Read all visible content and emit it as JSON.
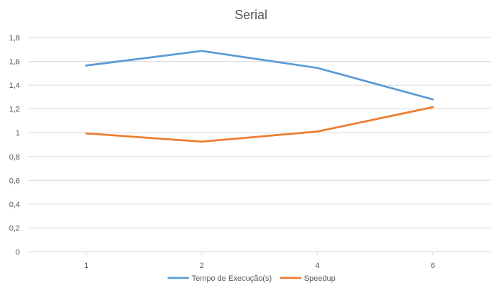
{
  "chart_data": {
    "type": "line",
    "title": "Serial",
    "xlabel": "",
    "ylabel": "",
    "categories": [
      "1",
      "2",
      "4",
      "6"
    ],
    "ylim": [
      0,
      1.8
    ],
    "ytick_step": 0.2,
    "yticks": [
      "0",
      "0,2",
      "0,4",
      "0,6",
      "0,8",
      "1",
      "1,2",
      "1,4",
      "1,6",
      "1,8"
    ],
    "grid": true,
    "legend_position": "bottom",
    "series": [
      {
        "name": "Tempo de Execução(s)",
        "color": "#5b9bd5",
        "values": [
          1.565,
          1.688,
          1.545,
          1.28
        ]
      },
      {
        "name": "Speedup",
        "color": "#ed7d31",
        "values": [
          0.995,
          0.925,
          1.01,
          1.215
        ]
      }
    ]
  }
}
